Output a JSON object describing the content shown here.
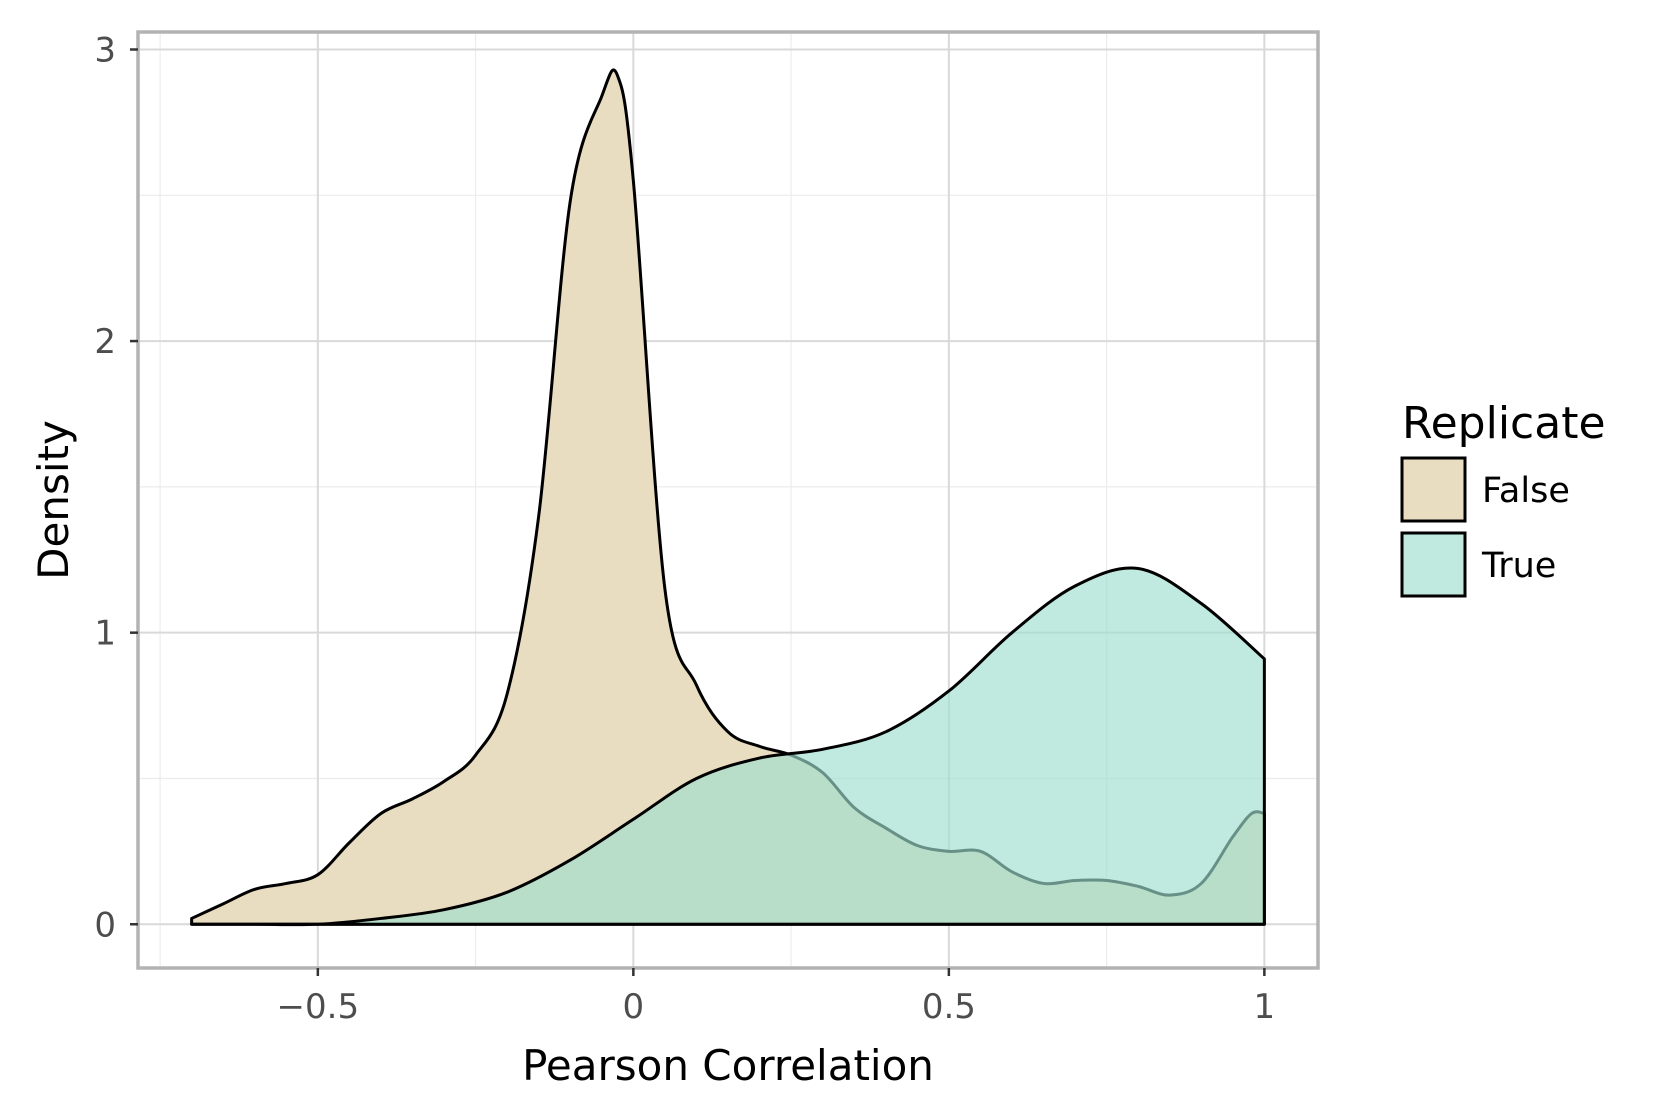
{
  "chart_data": {
    "type": "area",
    "subtype": "density",
    "title": "",
    "xlabel": "Pearson Correlation",
    "ylabel": "Density",
    "xlim": [
      -0.785,
      1.085
    ],
    "ylim": [
      -0.15,
      3.06
    ],
    "x_ticks": [
      -0.5,
      0,
      0.5,
      1
    ],
    "x_tick_labels": [
      "−0.5",
      "0",
      "0.5",
      "1"
    ],
    "y_ticks": [
      0,
      1,
      2,
      3
    ],
    "y_tick_labels": [
      "0",
      "1",
      "2",
      "3"
    ],
    "x_minor_ticks": [
      -0.75,
      -0.25,
      0.25,
      0.75
    ],
    "y_minor_ticks": [
      0.5,
      1.5,
      2.5
    ],
    "grid": true,
    "legend": {
      "title": "Replicate",
      "position": "right"
    },
    "series": [
      {
        "name": "False",
        "color": "#e8dcc1",
        "opacity": 1,
        "x": [
          -0.7,
          -0.65,
          -0.6,
          -0.55,
          -0.5,
          -0.45,
          -0.4,
          -0.35,
          -0.3,
          -0.25,
          -0.2,
          -0.15,
          -0.1,
          -0.05,
          -0.025,
          0,
          0.05,
          0.1,
          0.15,
          0.2,
          0.25,
          0.3,
          0.35,
          0.4,
          0.45,
          0.5,
          0.55,
          0.6,
          0.65,
          0.7,
          0.75,
          0.8,
          0.85,
          0.9,
          0.95,
          0.98,
          1.0
        ],
        "y": [
          0.02,
          0.07,
          0.12,
          0.14,
          0.17,
          0.28,
          0.38,
          0.43,
          0.49,
          0.58,
          0.79,
          1.4,
          2.48,
          2.84,
          2.91,
          2.55,
          1.15,
          0.82,
          0.66,
          0.61,
          0.58,
          0.52,
          0.4,
          0.33,
          0.27,
          0.25,
          0.25,
          0.18,
          0.14,
          0.15,
          0.15,
          0.13,
          0.1,
          0.14,
          0.3,
          0.38,
          0.38
        ]
      },
      {
        "name": "True",
        "color": "#9edfd0",
        "opacity": 0.65,
        "x": [
          -0.7,
          -0.6,
          -0.5,
          -0.4,
          -0.3,
          -0.2,
          -0.1,
          0,
          0.1,
          0.2,
          0.3,
          0.4,
          0.5,
          0.6,
          0.7,
          0.8,
          0.9,
          1.0
        ],
        "y": [
          0.0,
          0.0,
          0.0,
          0.02,
          0.05,
          0.11,
          0.22,
          0.36,
          0.5,
          0.57,
          0.6,
          0.66,
          0.8,
          1.0,
          1.16,
          1.22,
          1.1,
          0.91
        ]
      }
    ]
  }
}
